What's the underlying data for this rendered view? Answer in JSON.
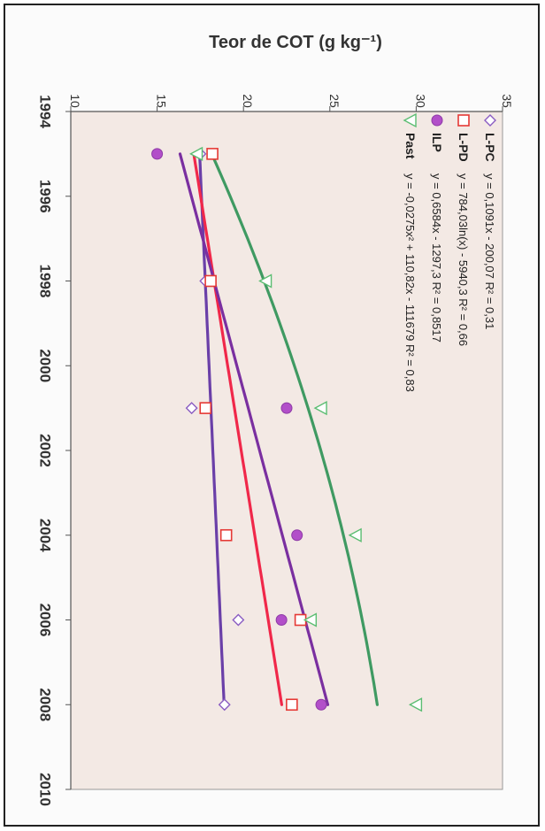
{
  "chart_data": {
    "type": "scatter",
    "ylabel": "Teor de COT (g kg⁻¹)",
    "ylim": [
      10,
      35
    ],
    "xlim": [
      1994,
      2010
    ],
    "y_ticks": [
      10,
      15,
      20,
      25,
      30,
      35
    ],
    "x_ticks": [
      "1994",
      "1996",
      "1998",
      "2000",
      "2002",
      "2004",
      "2006",
      "2008",
      "2010"
    ],
    "grid": false,
    "legend_position": "top-left",
    "series": [
      {
        "name": "L-PC",
        "equation": "y = 0,1091x - 200,07   R² = 0,31",
        "marker": "diamond",
        "color": "#8a5cc2",
        "line_color": "#6a3fa8",
        "x": [
          1995,
          1998,
          2001,
          2006,
          2008
        ],
        "y": [
          17.5,
          17.8,
          17.0,
          19.7,
          18.9
        ]
      },
      {
        "name": "L-PD",
        "equation": "y = 784,03ln(x) - 5940,3   R² = 0,66",
        "marker": "square",
        "color": "#e53935",
        "line_color": "#f0284a",
        "x": [
          1995,
          1998,
          2001,
          2004,
          2006,
          2008
        ],
        "y": [
          18.2,
          18.1,
          17.8,
          19.0,
          23.3,
          22.8
        ]
      },
      {
        "name": "ILP",
        "equation": "y = 0,6584x - 1297,3   R² = 0,8517",
        "marker": "circle",
        "color": "#b24fc9",
        "line_color": "#7a2fa0",
        "x": [
          1995,
          2001,
          2004,
          2006,
          2008
        ],
        "y": [
          15.0,
          22.5,
          23.1,
          22.2,
          24.5
        ]
      },
      {
        "name": "Past",
        "equation": "y = -0,0275x² + 110,82x - 111679   R² = 0,83",
        "marker": "triangle",
        "color": "#5bbd72",
        "line_color": "#3f9a62",
        "x": [
          1995,
          1998,
          2001,
          2004,
          2006,
          2008
        ],
        "y": [
          17.3,
          21.3,
          24.5,
          26.5,
          23.9,
          30.0
        ]
      }
    ]
  }
}
